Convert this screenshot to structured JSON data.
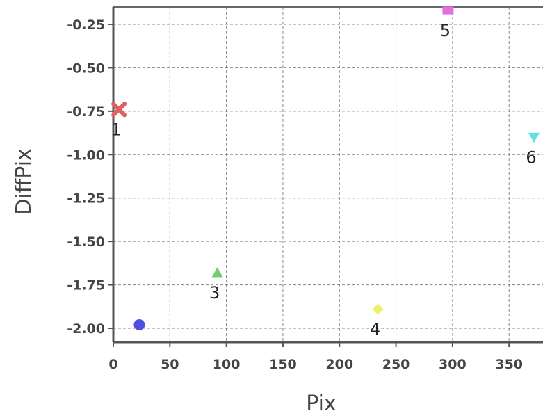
{
  "chart_data": {
    "type": "scatter",
    "xlabel": "Pix",
    "ylabel": "DiffPix",
    "xlim": [
      0,
      380
    ],
    "ylim": [
      -2.08,
      -0.15
    ],
    "xticks": [
      0,
      50,
      100,
      150,
      200,
      250,
      300,
      350
    ],
    "xtick_labels": [
      "0",
      "50",
      "100",
      "150",
      "200",
      "250",
      "300",
      "350"
    ],
    "yticks": [
      -0.25,
      -0.5,
      -0.75,
      -1.0,
      -1.25,
      -1.5,
      -1.75,
      -2.0
    ],
    "ytick_labels": [
      "-0.25",
      "-0.50",
      "-0.75",
      "-1.00",
      "-1.25",
      "-1.50",
      "-1.75",
      "-2.00"
    ],
    "grid": true,
    "points": [
      {
        "label": "1",
        "x": 5,
        "y": -0.74,
        "marker": "x",
        "color": "#e06060"
      },
      {
        "label": "",
        "x": 23,
        "y": -1.98,
        "marker": "circle",
        "color": "#5050e0"
      },
      {
        "label": "3",
        "x": 92,
        "y": -1.68,
        "marker": "triangle-up",
        "color": "#70d070"
      },
      {
        "label": "4",
        "x": 234,
        "y": -1.89,
        "marker": "diamond",
        "color": "#f0f070"
      },
      {
        "label": "5",
        "x": 296,
        "y": -0.17,
        "marker": "square",
        "color": "#e070e0"
      },
      {
        "label": "6",
        "x": 372,
        "y": -0.9,
        "marker": "triangle-down",
        "color": "#60e0e0"
      }
    ]
  }
}
